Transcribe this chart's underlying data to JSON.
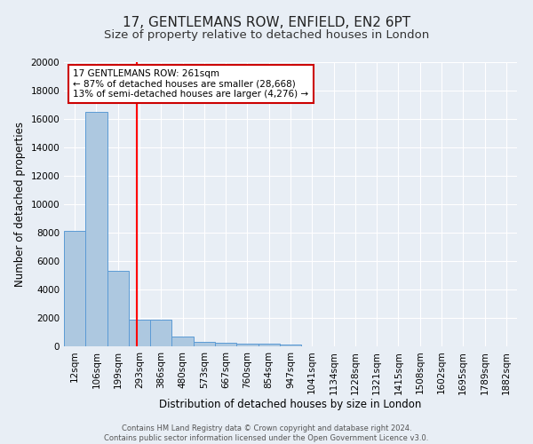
{
  "title": "17, GENTLEMANS ROW, ENFIELD, EN2 6PT",
  "subtitle": "Size of property relative to detached houses in London",
  "xlabel": "Distribution of detached houses by size in London",
  "ylabel": "Number of detached properties",
  "bin_labels": [
    "12sqm",
    "106sqm",
    "199sqm",
    "293sqm",
    "386sqm",
    "480sqm",
    "573sqm",
    "667sqm",
    "760sqm",
    "854sqm",
    "947sqm",
    "1041sqm",
    "1134sqm",
    "1228sqm",
    "1321sqm",
    "1415sqm",
    "1508sqm",
    "1602sqm",
    "1695sqm",
    "1789sqm",
    "1882sqm"
  ],
  "bar_values": [
    8100,
    16500,
    5300,
    1850,
    1850,
    700,
    300,
    250,
    200,
    200,
    150,
    0,
    0,
    0,
    0,
    0,
    0,
    0,
    0,
    0,
    0
  ],
  "bar_color": "#adc8e0",
  "bar_edge_color": "#5b9bd5",
  "background_color": "#e8eef5",
  "grid_color": "#ffffff",
  "red_line_x": 2.87,
  "annotation_text": "17 GENTLEMANS ROW: 261sqm\n← 87% of detached houses are smaller (28,668)\n13% of semi-detached houses are larger (4,276) →",
  "annotation_box_color": "#ffffff",
  "annotation_box_edge": "#cc0000",
  "ylim": [
    0,
    20000
  ],
  "yticks": [
    0,
    2000,
    4000,
    6000,
    8000,
    10000,
    12000,
    14000,
    16000,
    18000,
    20000
  ],
  "footer": "Contains HM Land Registry data © Crown copyright and database right 2024.\nContains public sector information licensed under the Open Government Licence v3.0.",
  "title_fontsize": 11,
  "subtitle_fontsize": 9.5,
  "label_fontsize": 8.5,
  "tick_fontsize": 7.5,
  "annot_fontsize": 7.5
}
